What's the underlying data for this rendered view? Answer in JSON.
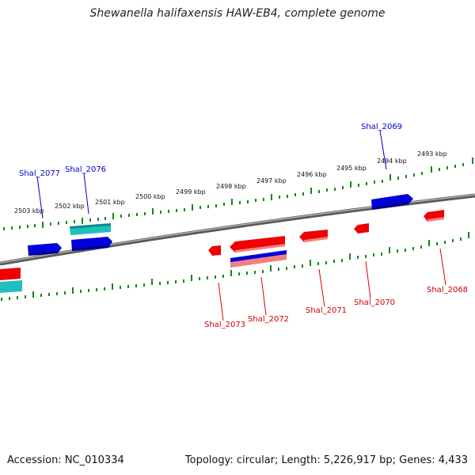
{
  "header": {
    "title": "Shewanella halifaxensis HAW-EB4, complete genome"
  },
  "footer": {
    "accession": "Accession: NC_010334",
    "summary": "Topology: circular; Length: 5,226,917 bp; Genes: 4,433"
  },
  "colors": {
    "forward_gene": "#0000dd",
    "forward_gene_alt": "#1fbfbf",
    "reverse_gene": "#ee0000",
    "reverse_gene_light": "#f08080",
    "backbone": "#808080",
    "tick": "#118811"
  },
  "tick_labels": [
    "2503 kbp",
    "2502 kbp",
    "2501 kbp",
    "2500 kbp",
    "2499 kbp",
    "2498 kbp",
    "2497 kbp",
    "2496 kbp",
    "2495 kbp",
    "2494 kbp",
    "2493 kbp"
  ],
  "forward_labels": [
    "Shal_2077",
    "Shal_2076",
    "Shal_2069"
  ],
  "reverse_labels": [
    "Shal_2073",
    "Shal_2072",
    "Shal_2071",
    "Shal_2070",
    "Shal_2068"
  ]
}
